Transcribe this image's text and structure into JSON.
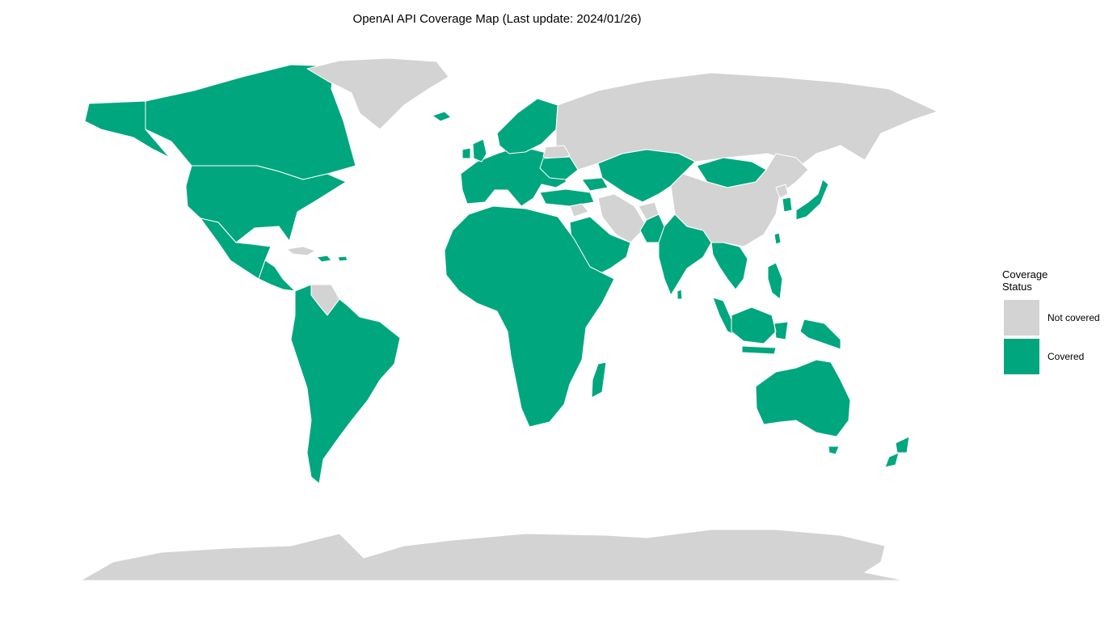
{
  "title": "OpenAI API Coverage Map (Last update: 2024/01/26)",
  "colors": {
    "covered": "#00a67e",
    "not_covered": "#d3d3d3",
    "border": "#ffffff",
    "background": "#ffffff"
  },
  "legend": {
    "title": "Coverage\nStatus",
    "title_line1": "Coverage",
    "title_line2": "Status",
    "items": [
      {
        "label": "Not covered",
        "status": "not_covered"
      },
      {
        "label": "Covered",
        "status": "covered"
      }
    ]
  },
  "regions": [
    {
      "name": "Canada",
      "status": "covered"
    },
    {
      "name": "Alaska",
      "status": "covered"
    },
    {
      "name": "United States",
      "status": "covered"
    },
    {
      "name": "Mexico",
      "status": "covered"
    },
    {
      "name": "Central America",
      "status": "covered"
    },
    {
      "name": "Cuba",
      "status": "not_covered"
    },
    {
      "name": "Caribbean",
      "status": "covered"
    },
    {
      "name": "Greenland",
      "status": "not_covered"
    },
    {
      "name": "Iceland",
      "status": "covered"
    },
    {
      "name": "Venezuela",
      "status": "not_covered"
    },
    {
      "name": "South America",
      "status": "covered"
    },
    {
      "name": "Europe",
      "status": "covered"
    },
    {
      "name": "United Kingdom",
      "status": "covered"
    },
    {
      "name": "Ireland",
      "status": "covered"
    },
    {
      "name": "Scandinavia",
      "status": "covered"
    },
    {
      "name": "Russia",
      "status": "not_covered"
    },
    {
      "name": "Belarus",
      "status": "not_covered"
    },
    {
      "name": "Ukraine",
      "status": "covered"
    },
    {
      "name": "Turkey",
      "status": "covered"
    },
    {
      "name": "Caucasus",
      "status": "covered"
    },
    {
      "name": "Syria",
      "status": "not_covered"
    },
    {
      "name": "Iran",
      "status": "not_covered"
    },
    {
      "name": "Arabian Peninsula",
      "status": "covered"
    },
    {
      "name": "Kazakhstan & Central Asia",
      "status": "covered"
    },
    {
      "name": "Afghanistan",
      "status": "not_covered"
    },
    {
      "name": "Pakistan",
      "status": "covered"
    },
    {
      "name": "India",
      "status": "covered"
    },
    {
      "name": "Sri Lanka",
      "status": "covered"
    },
    {
      "name": "Mongolia",
      "status": "covered"
    },
    {
      "name": "China",
      "status": "not_covered"
    },
    {
      "name": "North Korea",
      "status": "not_covered"
    },
    {
      "name": "South Korea",
      "status": "covered"
    },
    {
      "name": "Japan",
      "status": "covered"
    },
    {
      "name": "Southeast Asia",
      "status": "covered"
    },
    {
      "name": "Taiwan",
      "status": "covered"
    },
    {
      "name": "Philippines",
      "status": "covered"
    },
    {
      "name": "Indonesia",
      "status": "covered"
    },
    {
      "name": "Papua New Guinea",
      "status": "covered"
    },
    {
      "name": "Africa",
      "status": "covered"
    },
    {
      "name": "Madagascar",
      "status": "covered"
    },
    {
      "name": "Australia",
      "status": "covered"
    },
    {
      "name": "Tasmania",
      "status": "covered"
    },
    {
      "name": "New Zealand",
      "status": "covered"
    },
    {
      "name": "Antarctica",
      "status": "not_covered"
    }
  ]
}
